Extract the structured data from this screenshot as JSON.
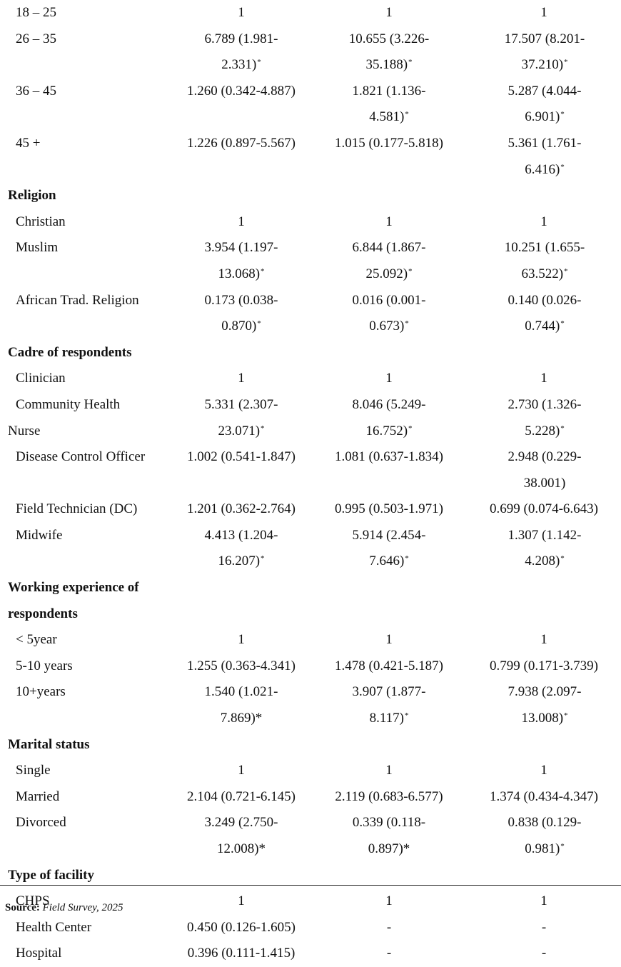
{
  "rows": [
    {
      "label": "18 – 25",
      "c1": "1",
      "c2": "1",
      "c3": "1"
    },
    {
      "label": "26 – 35",
      "c1": "6.789 (1.981-2.331)",
      "c1_sig": true,
      "c2": "10.655 (3.226-35.188)",
      "c2_sig": true,
      "c3": "17.507 (8.201-37.210)",
      "c3_sig": true
    },
    {
      "label": "36 – 45",
      "c1": "1.260 (0.342-4.887)",
      "c2": "1.821 (1.136-4.581)",
      "c2_sig": true,
      "c3": "5.287 (4.044-6.901)",
      "c3_sig": true
    },
    {
      "label": "45 +",
      "c1": "1.226 (0.897-5.567)",
      "c2": "1.015 (0.177-5.818)",
      "c3": "5.361 (1.761-6.416)",
      "c3_sig": true
    },
    {
      "head": "Religion"
    },
    {
      "label": "Christian",
      "c1": "1",
      "c2": "1",
      "c3": "1"
    },
    {
      "label": "Muslim",
      "c1": "3.954 (1.197-13.068)",
      "c1_sig": true,
      "c2": "6.844 (1.867-25.092)",
      "c2_sig": true,
      "c3": "10.251 (1.655-63.522)",
      "c3_sig": true
    },
    {
      "label": "African Trad. Religion",
      "c1": "0.173 (0.038-0.870)",
      "c1_sig": true,
      "c2": "0.016 (0.001-0.673)",
      "c2_sig": true,
      "c3": "0.140 (0.026-0.744)",
      "c3_sig": true
    },
    {
      "head": "Cadre of respondents"
    },
    {
      "label": "Clinician",
      "c1": "1",
      "c2": "1",
      "c3": "1"
    },
    {
      "label": "Community Health",
      "label2": "Nurse",
      "c1": "5.331 (2.307-23.071)",
      "c1_sig": true,
      "c2": "8.046 (5.249-16.752)",
      "c2_sig": true,
      "c3": "2.730 (1.326-5.228)",
      "c3_sig": true
    },
    {
      "label": "Disease Control Officer",
      "c1": "1.002 (0.541-1.847)",
      "c2": "1.081 (0.637-1.834)",
      "c3": "2.948 (0.229-38.001)"
    },
    {
      "label": "Field Technician (DC)",
      "c1": "1.201 (0.362-2.764)",
      "c2": "0.995 (0.503-1.971)",
      "c3": "0.699 (0.074-6.643)"
    },
    {
      "label": "Midwife",
      "c1": "4.413 (1.204-16.207)",
      "c1_sig": true,
      "c2": "5.914 (2.454-7.646)",
      "c2_sig": true,
      "c3": "1.307 (1.142-4.208)",
      "c3_sig": true
    },
    {
      "head": "Working experience of respondents",
      "head_lines": 2
    },
    {
      "label": "< 5year",
      "c1": "1",
      "c2": "1",
      "c3": "1"
    },
    {
      "label": "5-10 years",
      "c1": "1.255 (0.363-4.341)",
      "c2": "1.478 (0.421-5.187)",
      "c3": "0.799 (0.171-3.739)"
    },
    {
      "label": "10+years",
      "c1": "1.540 (1.021-7.869)*",
      "c2": "3.907 (1.877-8.117)",
      "c2_sig": true,
      "c3": "7.938 (2.097-13.008)",
      "c3_sig": true
    },
    {
      "head": "Marital status"
    },
    {
      "label": "Single",
      "c1": "1",
      "c2": "1",
      "c3": "1"
    },
    {
      "label": "Married",
      "c1": "2.104 (0.721-6.145)",
      "c2": "2.119 (0.683-6.577)",
      "c3": "1.374 (0.434-4.347)"
    },
    {
      "label": "Divorced",
      "c1": "3.249 (2.750-12.008)*",
      "c2": "0.339 (0.118-0.897)*",
      "c3": "0.838 (0.129-0.981)",
      "c3_sig": true
    },
    {
      "head": "Type of facility"
    },
    {
      "label": "CHPS",
      "c1": "1",
      "c2": "1",
      "c3": "1"
    },
    {
      "label": "Health Center",
      "c1": "0.450 (0.126-1.605)",
      "c2": "-",
      "c3": "-"
    },
    {
      "label": "Hospital",
      "c1": "0.396 (0.111-1.415)",
      "c2": "-",
      "c3": "-"
    }
  ],
  "sig_marker": "*",
  "source": {
    "label": "Source:",
    "text": "Field Survey, 2025"
  }
}
